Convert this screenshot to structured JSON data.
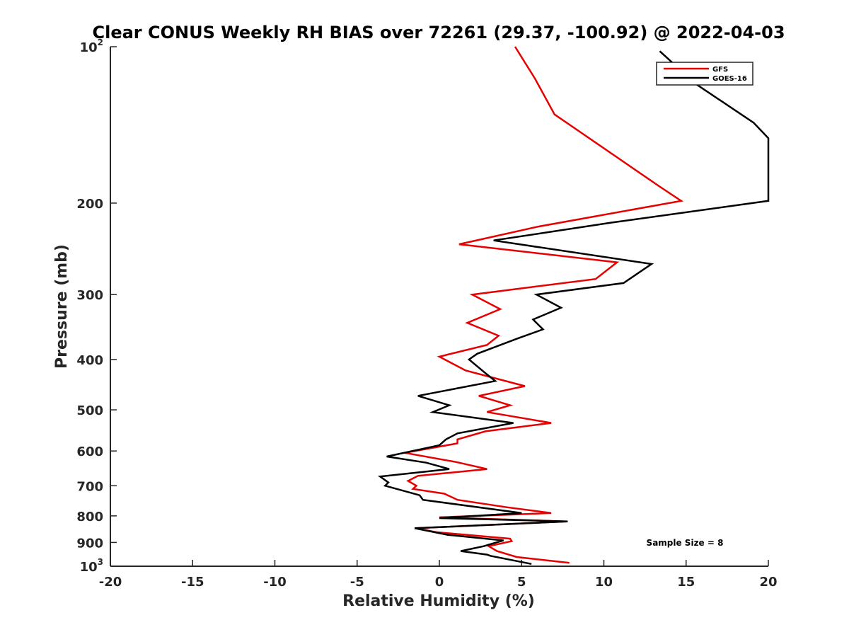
{
  "chart_data": {
    "type": "line",
    "title": "Clear CONUS Weekly RH BIAS over 72261 (29.37, -100.92) @ 2022-04-03",
    "xlabel": "Relative Humidity (%)",
    "ylabel": "Pressure (mb)",
    "xlim": [
      -20,
      20
    ],
    "ylim": [
      100,
      1000
    ],
    "y_scale": "log",
    "y_reversed": true,
    "x_ticks": [
      "-20",
      "-15",
      "-10",
      "-5",
      "0",
      "5",
      "10",
      "15",
      "20"
    ],
    "y_ticks": [
      {
        "value": 100,
        "base": "10",
        "exp": "2"
      },
      {
        "value": 200,
        "label": "200"
      },
      {
        "value": 300,
        "label": "300"
      },
      {
        "value": 400,
        "label": "400"
      },
      {
        "value": 500,
        "label": "500"
      },
      {
        "value": 600,
        "label": "600"
      },
      {
        "value": 700,
        "label": "700"
      },
      {
        "value": 800,
        "label": "800"
      },
      {
        "value": 900,
        "label": "900"
      },
      {
        "value": 1000,
        "base": "10",
        "exp": "3"
      }
    ],
    "grid": false,
    "legend_position": "top-right",
    "annotation": "Sample Size = 8",
    "series": [
      {
        "name": "GFS",
        "color": "#e60000",
        "points": [
          [
            4.6,
            100
          ],
          [
            5.8,
            115
          ],
          [
            7.0,
            135
          ],
          [
            13.3,
            185
          ],
          [
            14.7,
            198
          ],
          [
            6.0,
            222
          ],
          [
            1.2,
            240
          ],
          [
            10.8,
            260
          ],
          [
            9.5,
            280
          ],
          [
            2.0,
            300
          ],
          [
            3.7,
            320
          ],
          [
            1.7,
            340
          ],
          [
            3.6,
            360
          ],
          [
            2.9,
            375
          ],
          [
            0.0,
            395
          ],
          [
            1.6,
            420
          ],
          [
            5.2,
            450
          ],
          [
            2.4,
            470
          ],
          [
            4.3,
            490
          ],
          [
            2.9,
            505
          ],
          [
            6.8,
            530
          ],
          [
            2.8,
            550
          ],
          [
            1.1,
            570
          ],
          [
            1.1,
            580
          ],
          [
            -2.1,
            605
          ],
          [
            1.0,
            630
          ],
          [
            2.9,
            650
          ],
          [
            -1.3,
            670
          ],
          [
            -1.9,
            685
          ],
          [
            -1.4,
            700
          ],
          [
            -1.6,
            710
          ],
          [
            0.3,
            725
          ],
          [
            1.1,
            745
          ],
          [
            4.1,
            770
          ],
          [
            6.8,
            790
          ],
          [
            0.0,
            805
          ],
          [
            7.7,
            820
          ],
          [
            -1.4,
            845
          ],
          [
            -0.2,
            860
          ],
          [
            4.3,
            885
          ],
          [
            4.4,
            895
          ],
          [
            3.0,
            915
          ],
          [
            3.5,
            935
          ],
          [
            4.7,
            960
          ],
          [
            7.9,
            985
          ]
        ]
      },
      {
        "name": "GOES-16",
        "color": "#000000",
        "points": [
          [
            13.4,
            102
          ],
          [
            15.6,
            118
          ],
          [
            19.1,
            140
          ],
          [
            20.0,
            150
          ],
          [
            20.0,
            198
          ],
          [
            10.5,
            218
          ],
          [
            3.3,
            236
          ],
          [
            12.9,
            262
          ],
          [
            11.2,
            285
          ],
          [
            5.9,
            300
          ],
          [
            7.4,
            318
          ],
          [
            5.7,
            335
          ],
          [
            6.3,
            350
          ],
          [
            4.7,
            365
          ],
          [
            2.3,
            390
          ],
          [
            1.8,
            400
          ],
          [
            2.8,
            425
          ],
          [
            3.4,
            440
          ],
          [
            -1.3,
            470
          ],
          [
            0.6,
            490
          ],
          [
            -0.4,
            505
          ],
          [
            4.5,
            530
          ],
          [
            1.1,
            555
          ],
          [
            0.4,
            570
          ],
          [
            0.0,
            585
          ],
          [
            -3.2,
            615
          ],
          [
            -0.8,
            632
          ],
          [
            0.6,
            650
          ],
          [
            -3.6,
            672
          ],
          [
            -3.1,
            690
          ],
          [
            -3.3,
            700
          ],
          [
            -1.2,
            730
          ],
          [
            -1.0,
            745
          ],
          [
            5.0,
            790
          ],
          [
            0.0,
            808
          ],
          [
            7.8,
            820
          ],
          [
            -1.5,
            845
          ],
          [
            0.5,
            870
          ],
          [
            3.9,
            892
          ],
          [
            3.2,
            905
          ],
          [
            2.7,
            915
          ],
          [
            1.3,
            935
          ],
          [
            2.9,
            950
          ],
          [
            3.1,
            955
          ],
          [
            5.6,
            990
          ]
        ]
      }
    ]
  }
}
